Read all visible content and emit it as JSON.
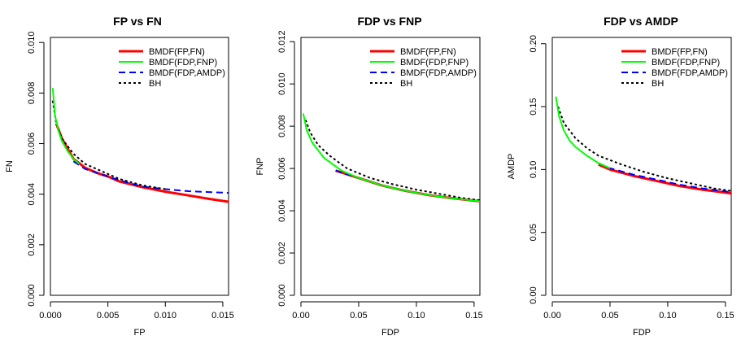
{
  "chart_data": [
    {
      "type": "line",
      "title": "FP vs FN",
      "xlabel": "FP",
      "ylabel": "FN",
      "xlim": [
        0,
        0.0155
      ],
      "ylim": [
        0,
        0.0102
      ],
      "xticks": [
        "0.000",
        "0.005",
        "0.010",
        "0.015"
      ],
      "xtick_values": [
        0,
        0.005,
        0.01,
        0.015
      ],
      "yticks": [
        "0.000",
        "0.002",
        "0.004",
        "0.006",
        "0.008",
        "0.010"
      ],
      "ytick_values": [
        0,
        0.002,
        0.004,
        0.006,
        0.008,
        0.01
      ],
      "legend_position": "top-right",
      "series": [
        {
          "name": "BMDF(FP,FN)",
          "color": "#ff0000",
          "style": "solid",
          "width": 3,
          "x": [
            0.0005,
            0.001,
            0.002,
            0.003,
            0.004,
            0.005,
            0.006,
            0.008,
            0.01,
            0.012,
            0.014,
            0.0155
          ],
          "y": [
            0.0068,
            0.0062,
            0.0054,
            0.00505,
            0.00485,
            0.0047,
            0.0045,
            0.00428,
            0.0041,
            0.00395,
            0.0038,
            0.0037
          ]
        },
        {
          "name": "BMDF(FDP,FNP)",
          "color": "#00ff00",
          "style": "solid",
          "width": 2,
          "x": [
            0.0002,
            0.0004,
            0.0007,
            0.001,
            0.0015,
            0.002,
            0.0025
          ],
          "y": [
            0.0082,
            0.0071,
            0.0065,
            0.0061,
            0.0057,
            0.0054,
            0.0052
          ]
        },
        {
          "name": "BMDF(FDP,AMDP)",
          "color": "#0000ff",
          "style": "dashed",
          "width": 2,
          "x": [
            0.002,
            0.003,
            0.004,
            0.005,
            0.006,
            0.008,
            0.01,
            0.012,
            0.014,
            0.0155
          ],
          "y": [
            0.0053,
            0.005,
            0.00485,
            0.0047,
            0.00455,
            0.0043,
            0.0042,
            0.00412,
            0.00408,
            0.00405
          ]
        },
        {
          "name": "BH",
          "color": "#000000",
          "style": "dotted",
          "width": 2,
          "x": [
            0.0002,
            0.0005,
            0.001,
            0.002,
            0.003,
            0.004,
            0.005,
            0.006,
            0.008,
            0.01
          ],
          "y": [
            0.0077,
            0.0068,
            0.0062,
            0.0056,
            0.0052,
            0.005,
            0.0048,
            0.0046,
            0.00435,
            0.0042
          ]
        }
      ]
    },
    {
      "type": "line",
      "title": "FDP vs FNP",
      "xlabel": "FDP",
      "ylabel": "FNP",
      "xlim": [
        0,
        0.155
      ],
      "ylim": [
        0,
        0.0122
      ],
      "xticks": [
        "0.00",
        "0.05",
        "0.10",
        "0.15"
      ],
      "xtick_values": [
        0,
        0.05,
        0.1,
        0.15
      ],
      "yticks": [
        "0.000",
        "0.002",
        "0.004",
        "0.006",
        "0.008",
        "0.010",
        "0.012"
      ],
      "ytick_values": [
        0,
        0.002,
        0.004,
        0.006,
        0.008,
        0.01,
        0.012
      ],
      "legend_position": "top-right",
      "series": [
        {
          "name": "BMDF(FP,FN)",
          "color": "#ff0000",
          "style": "solid",
          "width": 3,
          "x": [
            0.03,
            0.05,
            0.07,
            0.09,
            0.11,
            0.13,
            0.155
          ],
          "y": [
            0.0059,
            0.00555,
            0.0052,
            0.00495,
            0.00475,
            0.0046,
            0.00445
          ]
        },
        {
          "name": "BMDF(FDP,FNP)",
          "color": "#00ff00",
          "style": "solid",
          "width": 2,
          "x": [
            0.002,
            0.005,
            0.01,
            0.02,
            0.035,
            0.05,
            0.07,
            0.09,
            0.11,
            0.13,
            0.155
          ],
          "y": [
            0.0086,
            0.0078,
            0.0072,
            0.0065,
            0.0059,
            0.00555,
            0.0052,
            0.00495,
            0.00475,
            0.0046,
            0.00445
          ]
        },
        {
          "name": "BMDF(FDP,AMDP)",
          "color": "#0000ff",
          "style": "dashed",
          "width": 2,
          "x": [
            0.03,
            0.05,
            0.07,
            0.09,
            0.11,
            0.13,
            0.155
          ],
          "y": [
            0.0059,
            0.00555,
            0.0052,
            0.00495,
            0.00475,
            0.0046,
            0.00445
          ]
        },
        {
          "name": "BH",
          "color": "#000000",
          "style": "dotted",
          "width": 2,
          "x": [
            0.004,
            0.008,
            0.015,
            0.025,
            0.04,
            0.06,
            0.08,
            0.1,
            0.12,
            0.14,
            0.155
          ],
          "y": [
            0.0083,
            0.0077,
            0.0071,
            0.0066,
            0.006,
            0.00555,
            0.00525,
            0.005,
            0.0048,
            0.0046,
            0.0045
          ]
        }
      ]
    },
    {
      "type": "line",
      "title": "FDP vs AMDP",
      "xlabel": "FDP",
      "ylabel": "AMDP",
      "xlim": [
        0,
        0.155
      ],
      "ylim": [
        0,
        0.205
      ],
      "xticks": [
        "0.00",
        "0.05",
        "0.10",
        "0.15"
      ],
      "xtick_values": [
        0,
        0.05,
        0.1,
        0.15
      ],
      "yticks": [
        "0.00",
        "0.05",
        "0.10",
        "0.15",
        "0.20"
      ],
      "ytick_values": [
        0,
        0.05,
        0.1,
        0.15,
        0.2
      ],
      "legend_position": "top-right",
      "series": [
        {
          "name": "BMDF(FP,FN)",
          "color": "#ff0000",
          "style": "solid",
          "width": 3,
          "x": [
            0.04,
            0.05,
            0.07,
            0.09,
            0.11,
            0.13,
            0.155
          ],
          "y": [
            0.104,
            0.1,
            0.095,
            0.091,
            0.087,
            0.084,
            0.081
          ]
        },
        {
          "name": "BMDF(FDP,FNP)",
          "color": "#00ff00",
          "style": "solid",
          "width": 2,
          "x": [
            0.003,
            0.006,
            0.01,
            0.015,
            0.02,
            0.03,
            0.04,
            0.05
          ],
          "y": [
            0.158,
            0.142,
            0.131,
            0.123,
            0.118,
            0.111,
            0.105,
            0.101
          ]
        },
        {
          "name": "BMDF(FDP,AMDP)",
          "color": "#0000ff",
          "style": "dashed",
          "width": 2,
          "x": [
            0.04,
            0.05,
            0.07,
            0.09,
            0.11,
            0.13,
            0.155
          ],
          "y": [
            0.105,
            0.101,
            0.096,
            0.092,
            0.088,
            0.085,
            0.082
          ]
        },
        {
          "name": "BH",
          "color": "#000000",
          "style": "dotted",
          "width": 2,
          "x": [
            0.005,
            0.01,
            0.02,
            0.03,
            0.04,
            0.06,
            0.08,
            0.1,
            0.12,
            0.14,
            0.155
          ],
          "y": [
            0.15,
            0.137,
            0.125,
            0.117,
            0.111,
            0.104,
            0.098,
            0.093,
            0.089,
            0.085,
            0.083
          ]
        }
      ]
    }
  ]
}
